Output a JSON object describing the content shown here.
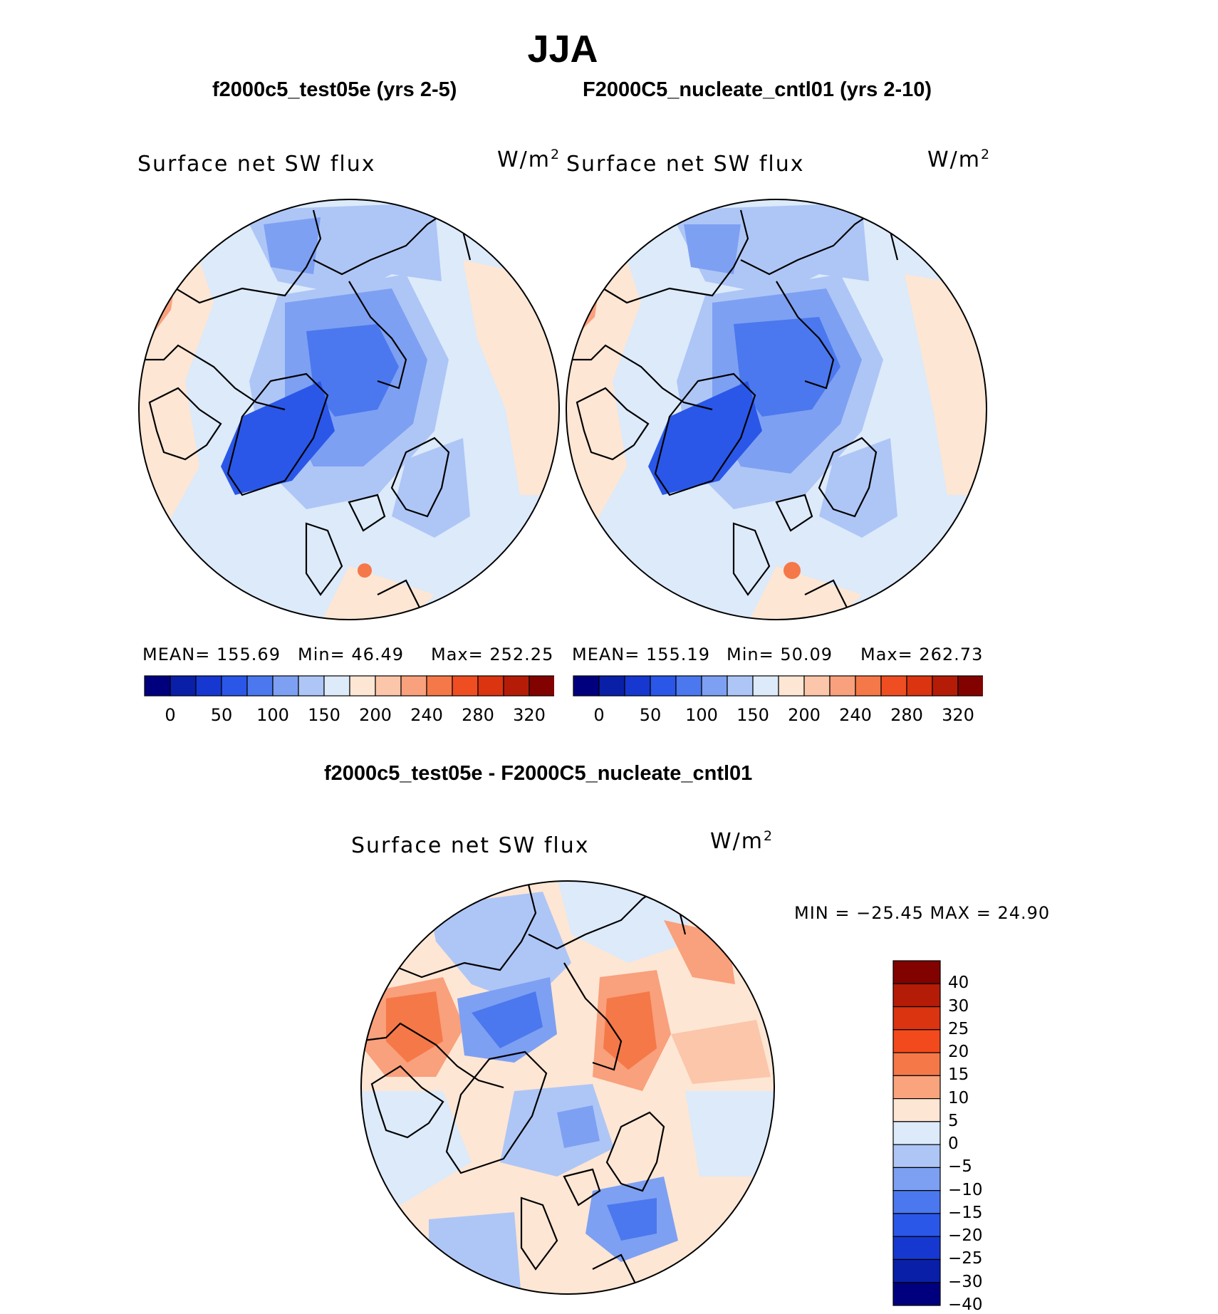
{
  "figure": {
    "season": "JJA",
    "case_a": "f2000c5_test05e (yrs 2-5)",
    "case_b": "F2000C5_nucleate_cntl01 (yrs 2-10)",
    "diff_title": "f2000c5_test05e - F2000C5_nucleate_cntl01"
  },
  "panels": [
    {
      "variable": "Surface net SW flux",
      "units": "W/m",
      "units_sup": "2",
      "mean": "MEAN=  155.69",
      "min": "Min=    46.49",
      "max": "Max=  252.25"
    },
    {
      "variable": "Surface net SW flux",
      "units": "W/m",
      "units_sup": "2",
      "mean": "MEAN=  155.19",
      "min": "Min=    50.09",
      "max": "Max=  262.73"
    },
    {
      "variable": "Surface net SW flux",
      "units": "W/m",
      "units_sup": "2",
      "minmax": "MIN  =  −25.45  MAX  =    24.90"
    }
  ],
  "colorbar_top": {
    "colors": [
      "#00007f",
      "#0a1fa8",
      "#1638d0",
      "#2a57e8",
      "#4b78ee",
      "#7ea0f2",
      "#aec6f6",
      "#dceafa",
      "#fde6d4",
      "#fbc6aa",
      "#f9a07c",
      "#f57848",
      "#ef4e22",
      "#da3410",
      "#b41c08",
      "#820200"
    ],
    "labels": [
      "0",
      "50",
      "100",
      "150",
      "200",
      "240",
      "280",
      "320"
    ]
  },
  "colorbar_diff": {
    "colors": [
      "#820200",
      "#b41c08",
      "#da3410",
      "#f24a1c",
      "#f57848",
      "#f9a47c",
      "#fde6d4",
      "#dceafa",
      "#aec6f6",
      "#7ea0f2",
      "#4b78ee",
      "#2a57e8",
      "#1638d0",
      "#0a1fa8",
      "#00007f"
    ],
    "labels": [
      "40",
      "30",
      "25",
      "20",
      "15",
      "10",
      "5",
      "0",
      "−5",
      "−10",
      "−15",
      "−20",
      "−25",
      "−30",
      "−40"
    ]
  },
  "map_colors": {
    "land_outline": "#000000",
    "deep_blue": "#2a57e8",
    "mid_blue": "#7ea0f2",
    "light_blue": "#aec6f6",
    "pale_blue": "#dceafa",
    "pale_orange": "#fde6d4",
    "orange": "#f9a07c",
    "red_orange": "#f57848"
  }
}
